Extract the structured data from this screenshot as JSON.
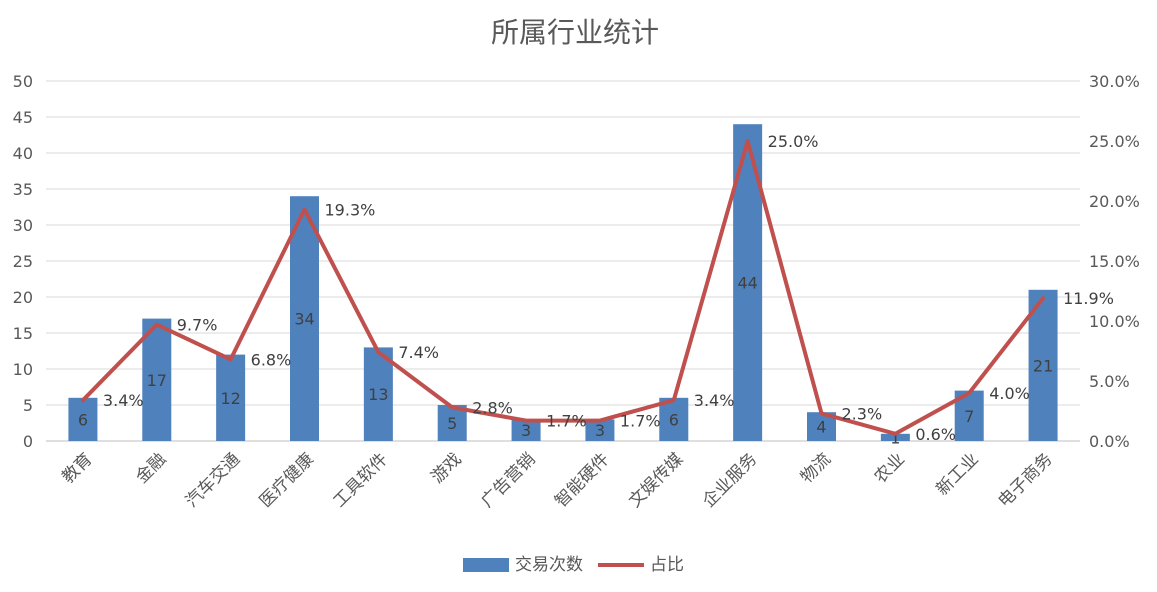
{
  "chart_data": {
    "type": "bar+line",
    "title": "所属行业统计",
    "categories": [
      "教育",
      "金融",
      "汽车交通",
      "医疗健康",
      "工具软件",
      "游戏",
      "广告营销",
      "智能硬件",
      "文娱传媒",
      "企业服务",
      "物流",
      "农业",
      "新工业",
      "电子商务"
    ],
    "series": [
      {
        "name": "交易次数",
        "type": "bar",
        "axis": "left",
        "color": "#4F81BD",
        "values": [
          6,
          17,
          12,
          34,
          13,
          5,
          3,
          3,
          6,
          44,
          4,
          1,
          7,
          21
        ],
        "labels": [
          "6",
          "17",
          "12",
          "34",
          "13",
          "5",
          "3",
          "3",
          "6",
          "44",
          "4",
          "1",
          "7",
          "21"
        ]
      },
      {
        "name": "占比",
        "type": "line",
        "axis": "right",
        "color": "#C0504D",
        "values": [
          3.4,
          9.7,
          6.8,
          19.3,
          7.4,
          2.8,
          1.7,
          1.7,
          3.4,
          25.0,
          2.3,
          0.6,
          4.0,
          11.9
        ],
        "labels": [
          "3.4%",
          "9.7%",
          "6.8%",
          "19.3%",
          "7.4%",
          "2.8%",
          "1.7%",
          "1.7%",
          "3.4%",
          "25.0%",
          "2.3%",
          "0.6%",
          "4.0%",
          "11.9%"
        ]
      }
    ],
    "y_left": {
      "min": 0,
      "max": 50,
      "ticks": [
        "0",
        "5",
        "10",
        "15",
        "20",
        "25",
        "30",
        "35",
        "40",
        "45",
        "50"
      ]
    },
    "y_right": {
      "min": 0,
      "max": 30,
      "ticks": [
        "0.0%",
        "5.0%",
        "10.0%",
        "15.0%",
        "20.0%",
        "25.0%",
        "30.0%"
      ]
    },
    "grid": true,
    "legend": "bottom"
  }
}
